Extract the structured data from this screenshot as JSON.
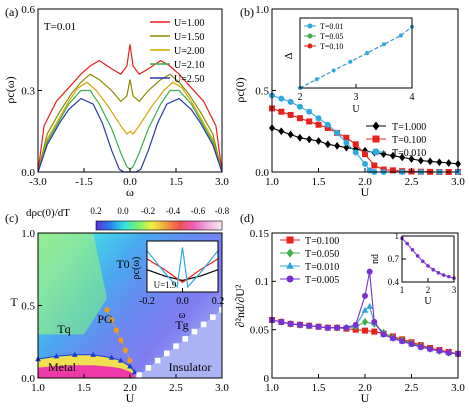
{
  "chart_data": [
    {
      "panel": "(a)",
      "type": "line",
      "annotation": "T=0.01",
      "xlabel": "ω",
      "ylabel": "ρc(ω)",
      "xlim": [
        -3.0,
        3.0
      ],
      "ylim": [
        0.0,
        0.6
      ],
      "xticks": [
        "-3.0",
        "-1.5",
        "0.0",
        "1.5",
        "3.0"
      ],
      "yticks": [
        "0.0",
        "0.3",
        "0.6"
      ],
      "legend_position": "top-right",
      "series": [
        {
          "name": "U=1.00",
          "color": "#e8211d",
          "x": [
            -3.0,
            -2.8,
            -2.4,
            -2.0,
            -1.6,
            -1.3,
            -1.0,
            -0.6,
            -0.3,
            -0.1,
            0.0,
            0.1,
            0.3,
            0.6,
            1.0,
            1.3,
            1.6,
            2.0,
            2.4,
            2.8,
            3.0
          ],
          "y": [
            0.0,
            0.17,
            0.26,
            0.31,
            0.36,
            0.39,
            0.41,
            0.38,
            0.36,
            0.39,
            0.47,
            0.39,
            0.36,
            0.38,
            0.41,
            0.39,
            0.36,
            0.31,
            0.26,
            0.17,
            0.0
          ]
        },
        {
          "name": "U=1.50",
          "color": "#8a8a00",
          "x": [
            -3.0,
            -2.7,
            -2.3,
            -1.9,
            -1.6,
            -1.3,
            -1.0,
            -0.6,
            -0.3,
            -0.1,
            0.0,
            0.1,
            0.3,
            0.6,
            1.0,
            1.3,
            1.6,
            1.9,
            2.3,
            2.7,
            3.0
          ],
          "y": [
            0.0,
            0.14,
            0.22,
            0.29,
            0.33,
            0.36,
            0.34,
            0.3,
            0.26,
            0.28,
            0.34,
            0.28,
            0.26,
            0.3,
            0.34,
            0.36,
            0.33,
            0.29,
            0.22,
            0.14,
            0.0
          ]
        },
        {
          "name": "U=2.00",
          "color": "#d9a400",
          "x": [
            -3.0,
            -2.7,
            -2.3,
            -2.0,
            -1.7,
            -1.4,
            -1.1,
            -0.7,
            -0.3,
            -0.1,
            0.0,
            0.1,
            0.3,
            0.7,
            1.1,
            1.4,
            1.7,
            2.0,
            2.3,
            2.7,
            3.0
          ],
          "y": [
            0.0,
            0.12,
            0.2,
            0.26,
            0.31,
            0.33,
            0.3,
            0.24,
            0.17,
            0.14,
            0.15,
            0.14,
            0.17,
            0.24,
            0.3,
            0.33,
            0.31,
            0.26,
            0.2,
            0.12,
            0.0
          ]
        },
        {
          "name": "U=2.10",
          "color": "#3fae49",
          "x": [
            -3.0,
            -2.7,
            -2.3,
            -2.0,
            -1.6,
            -1.3,
            -1.0,
            -0.6,
            -0.3,
            -0.1,
            0.0,
            0.1,
            0.3,
            0.6,
            1.0,
            1.3,
            1.6,
            2.0,
            2.3,
            2.7,
            3.0
          ],
          "y": [
            0.0,
            0.11,
            0.19,
            0.25,
            0.3,
            0.3,
            0.25,
            0.16,
            0.07,
            0.02,
            0.01,
            0.02,
            0.07,
            0.16,
            0.25,
            0.3,
            0.3,
            0.25,
            0.19,
            0.11,
            0.0
          ]
        },
        {
          "name": "U=2.50",
          "color": "#2a3aa8",
          "x": [
            -3.0,
            -2.7,
            -2.3,
            -2.0,
            -1.6,
            -1.2,
            -0.9,
            -0.6,
            -0.35,
            -0.2,
            0.0,
            0.2,
            0.35,
            0.6,
            0.9,
            1.2,
            1.6,
            2.0,
            2.3,
            2.7,
            3.0
          ],
          "y": [
            0.0,
            0.1,
            0.18,
            0.23,
            0.27,
            0.25,
            0.18,
            0.08,
            0.01,
            0.0,
            0.0,
            0.0,
            0.01,
            0.08,
            0.18,
            0.25,
            0.27,
            0.23,
            0.18,
            0.1,
            0.0
          ]
        }
      ]
    },
    {
      "panel": "(b)",
      "type": "line",
      "xlabel": "U",
      "ylabel": "ρc(0)",
      "xlim": [
        1.0,
        3.0
      ],
      "ylim": [
        0.0,
        1.0
      ],
      "xticks": [
        "1.0",
        "1.5",
        "2.0",
        "2.5",
        "3.0"
      ],
      "yticks": [
        "0.0",
        "0.5",
        "1.0"
      ],
      "legend_position": "bottom-right",
      "series": [
        {
          "name": "T=1.000",
          "color": "#000000",
          "marker": "diamond",
          "x": [
            1.0,
            1.1,
            1.2,
            1.3,
            1.4,
            1.5,
            1.6,
            1.7,
            1.8,
            1.9,
            2.0,
            2.1,
            2.2,
            2.3,
            2.4,
            2.5,
            2.6,
            2.7,
            2.8,
            2.9,
            3.0
          ],
          "y": [
            0.27,
            0.25,
            0.23,
            0.21,
            0.2,
            0.19,
            0.17,
            0.16,
            0.15,
            0.14,
            0.13,
            0.12,
            0.11,
            0.1,
            0.09,
            0.08,
            0.07,
            0.065,
            0.06,
            0.055,
            0.05
          ]
        },
        {
          "name": "T=0.100",
          "color": "#e8211d",
          "marker": "square",
          "x": [
            1.0,
            1.1,
            1.2,
            1.3,
            1.4,
            1.5,
            1.6,
            1.7,
            1.8,
            1.9,
            2.0,
            2.1,
            2.2,
            2.3,
            2.4,
            2.5,
            2.6,
            2.7,
            2.8,
            2.9,
            3.0
          ],
          "y": [
            0.39,
            0.37,
            0.35,
            0.33,
            0.31,
            0.29,
            0.27,
            0.24,
            0.21,
            0.17,
            0.11,
            0.04,
            0.015,
            0.01,
            0.005,
            0.003,
            0.002,
            0.001,
            0.0,
            0.0,
            0.0
          ]
        },
        {
          "name": "T=0.010",
          "color": "#2ea9df",
          "marker": "circle",
          "x": [
            1.0,
            1.1,
            1.2,
            1.3,
            1.4,
            1.5,
            1.6,
            1.7,
            1.8,
            1.9,
            2.0,
            2.05,
            2.1,
            2.2,
            2.4,
            2.6,
            2.8,
            3.0
          ],
          "y": [
            0.47,
            0.45,
            0.43,
            0.4,
            0.37,
            0.33,
            0.29,
            0.24,
            0.18,
            0.12,
            0.05,
            0.01,
            0.0,
            0.0,
            0.0,
            0.0,
            0.0,
            0.0
          ]
        }
      ],
      "inset": {
        "xlabel": "U",
        "ylabel": "Δ",
        "xlim": [
          2.0,
          4.0
        ],
        "xticks": [
          "2",
          "3",
          "4"
        ],
        "legend_position": "top-left",
        "series": [
          {
            "name": "T=0.01",
            "color": "#2ea9df",
            "marker": "circle",
            "x": [
              2.0,
              2.3,
              2.6,
              2.9,
              3.2,
              3.5,
              3.8,
              4.0
            ],
            "y": [
              0.0,
              0.1,
              0.2,
              0.3,
              0.4,
              0.5,
              0.6,
              0.7
            ]
          },
          {
            "name": "T=0.05",
            "color": "#3fae49",
            "marker": "circle",
            "x": [
              2.0,
              2.3,
              2.6,
              2.9,
              3.2,
              3.5,
              3.8,
              4.0
            ],
            "y": [
              0.0,
              0.1,
              0.2,
              0.3,
              0.4,
              0.5,
              0.6,
              0.7
            ]
          },
          {
            "name": "T=0.10",
            "color": "#e8211d",
            "marker": "circle",
            "x": [
              2.0,
              2.3,
              2.6,
              2.9,
              3.2,
              3.5,
              3.8,
              4.0
            ],
            "y": [
              0.0,
              0.1,
              0.2,
              0.3,
              0.4,
              0.5,
              0.6,
              0.7
            ]
          }
        ]
      }
    },
    {
      "panel": "(c)",
      "type": "heatmap",
      "colorbar_label": "dρc(0)/dT",
      "colorbar_ticks": [
        "0.2",
        "0.0",
        "-0.2",
        "-0.4",
        "-0.6",
        "-0.8"
      ],
      "colorbar_colors": [
        "#5a30d8",
        "#2a7ef0",
        "#30e0e0",
        "#7af070",
        "#f0f040",
        "#f0a040",
        "#f05050",
        "#f060c0",
        "#f0b0e0",
        "#fbe8f4"
      ],
      "xlabel": "U",
      "ylabel": "T",
      "xlim": [
        1.0,
        3.0
      ],
      "ylim": [
        0.0,
        1.0
      ],
      "xticks": [
        "1.0",
        "1.5",
        "2.0",
        "2.5",
        "3.0"
      ],
      "yticks": [
        "0.0",
        "0.5",
        "1.0"
      ],
      "region_labels": [
        "T0",
        "PG",
        "Tq",
        "Tg",
        "Metal",
        "Insulator"
      ],
      "boundaries": [
        {
          "name": "T0",
          "color": "#f39a1a",
          "x": [
            1.75,
            1.8,
            1.85,
            1.9,
            1.95,
            2.0
          ],
          "y": [
            0.47,
            0.4,
            0.33,
            0.26,
            0.19,
            0.12
          ]
        },
        {
          "name": "Tq",
          "color": "#1a3fd0",
          "x": [
            1.0,
            1.2,
            1.4,
            1.6,
            1.8,
            1.9,
            2.0,
            2.05
          ],
          "y": [
            0.13,
            0.15,
            0.16,
            0.16,
            0.14,
            0.12,
            0.08,
            0.04
          ]
        },
        {
          "name": "Tg",
          "color": "#ffffff",
          "x": [
            2.1,
            2.2,
            2.3,
            2.4,
            2.5,
            2.6,
            2.7,
            2.8,
            2.9,
            3.0
          ],
          "y": [
            0.02,
            0.07,
            0.12,
            0.17,
            0.22,
            0.27,
            0.32,
            0.37,
            0.42,
            0.47
          ]
        }
      ],
      "inset": {
        "annotation": "U=1.9",
        "xlabel": "ω",
        "ylabel": "ρc(ω)",
        "xlim": [
          -0.2,
          0.2
        ],
        "xticks": [
          "-0.2",
          "0.0",
          "0.2"
        ],
        "series": [
          {
            "color": "#000000",
            "x": [
              -0.2,
              -0.1,
              0.0,
              0.1,
              0.2
            ],
            "y": [
              0.55,
              0.45,
              0.38,
              0.45,
              0.55
            ]
          },
          {
            "color": "#e8211d",
            "x": [
              -0.2,
              -0.1,
              0.0,
              0.1,
              0.2
            ],
            "y": [
              0.72,
              0.55,
              0.35,
              0.55,
              0.72
            ]
          },
          {
            "color": "#2ea9df",
            "x": [
              -0.2,
              -0.1,
              -0.03,
              0.0,
              0.03,
              0.1,
              0.2
            ],
            "y": [
              0.85,
              0.5,
              0.28,
              0.9,
              0.28,
              0.5,
              0.85
            ]
          }
        ]
      }
    },
    {
      "panel": "(d)",
      "type": "line",
      "xlabel": "U",
      "ylabel": "∂²nd/∂U²",
      "xlim": [
        1.0,
        3.0
      ],
      "ylim": [
        0.0,
        0.15
      ],
      "xticks": [
        "1.0",
        "1.5",
        "2.0",
        "2.5",
        "3.0"
      ],
      "yticks": [
        "0",
        "0.05",
        "0.1",
        "0.15"
      ],
      "legend_position": "top-left",
      "series": [
        {
          "name": "T=0.100",
          "color": "#e8211d",
          "marker": "square",
          "x": [
            1.0,
            1.1,
            1.2,
            1.3,
            1.4,
            1.5,
            1.6,
            1.7,
            1.8,
            1.9,
            2.0,
            2.1,
            2.2,
            2.3,
            2.4,
            2.5,
            2.6,
            2.7,
            2.8,
            2.9,
            3.0
          ],
          "y": [
            0.06,
            0.058,
            0.056,
            0.055,
            0.054,
            0.053,
            0.052,
            0.052,
            0.051,
            0.05,
            0.049,
            0.048,
            0.046,
            0.043,
            0.04,
            0.037,
            0.034,
            0.031,
            0.029,
            0.027,
            0.025
          ]
        },
        {
          "name": "T=0.050",
          "color": "#3fae49",
          "marker": "diamond",
          "x": [
            1.0,
            1.1,
            1.2,
            1.3,
            1.4,
            1.5,
            1.6,
            1.7,
            1.8,
            1.9,
            2.0,
            2.1,
            2.2,
            2.3,
            2.4,
            2.5,
            2.6,
            2.7,
            2.8,
            2.9,
            3.0
          ],
          "y": [
            0.06,
            0.058,
            0.056,
            0.055,
            0.054,
            0.053,
            0.052,
            0.052,
            0.052,
            0.053,
            0.058,
            0.056,
            0.047,
            0.042,
            0.039,
            0.036,
            0.033,
            0.03,
            0.028,
            0.026,
            0.025
          ]
        },
        {
          "name": "T=0.010",
          "color": "#2ea9df",
          "marker": "triangle",
          "x": [
            1.0,
            1.1,
            1.2,
            1.3,
            1.4,
            1.5,
            1.6,
            1.7,
            1.8,
            1.9,
            2.0,
            2.05,
            2.1,
            2.2,
            2.3,
            2.4,
            2.5,
            2.6,
            2.7,
            2.8,
            2.9,
            3.0
          ],
          "y": [
            0.06,
            0.058,
            0.056,
            0.055,
            0.054,
            0.053,
            0.052,
            0.052,
            0.052,
            0.054,
            0.07,
            0.074,
            0.057,
            0.045,
            0.041,
            0.038,
            0.035,
            0.032,
            0.03,
            0.028,
            0.026,
            0.025
          ]
        },
        {
          "name": "T=0.005",
          "color": "#7b2fd4",
          "marker": "circle",
          "x": [
            1.0,
            1.1,
            1.2,
            1.3,
            1.4,
            1.5,
            1.6,
            1.7,
            1.8,
            1.9,
            2.0,
            2.05,
            2.1,
            2.2,
            2.3,
            2.4,
            2.5,
            2.6,
            2.7,
            2.8,
            2.9,
            3.0
          ],
          "y": [
            0.06,
            0.058,
            0.056,
            0.055,
            0.054,
            0.053,
            0.052,
            0.052,
            0.052,
            0.055,
            0.085,
            0.11,
            0.058,
            0.045,
            0.041,
            0.038,
            0.035,
            0.032,
            0.03,
            0.028,
            0.026,
            0.025
          ]
        }
      ],
      "inset": {
        "xlabel": "U",
        "ylabel": "nd",
        "xlim": [
          1,
          3
        ],
        "ylim": [
          0.4,
          1.0
        ],
        "xticks": [
          "1",
          "2",
          "3"
        ],
        "yticks": [
          "0.4",
          "0.7",
          "1"
        ],
        "series": [
          {
            "color": "#7b2fd4",
            "marker": "circle",
            "x": [
              1.0,
              1.2,
              1.4,
              1.6,
              1.8,
              2.0,
              2.2,
              2.4,
              2.6,
              2.8,
              3.0
            ],
            "y": [
              0.97,
              0.9,
              0.82,
              0.74,
              0.67,
              0.61,
              0.56,
              0.52,
              0.49,
              0.47,
              0.45
            ]
          }
        ]
      }
    }
  ]
}
